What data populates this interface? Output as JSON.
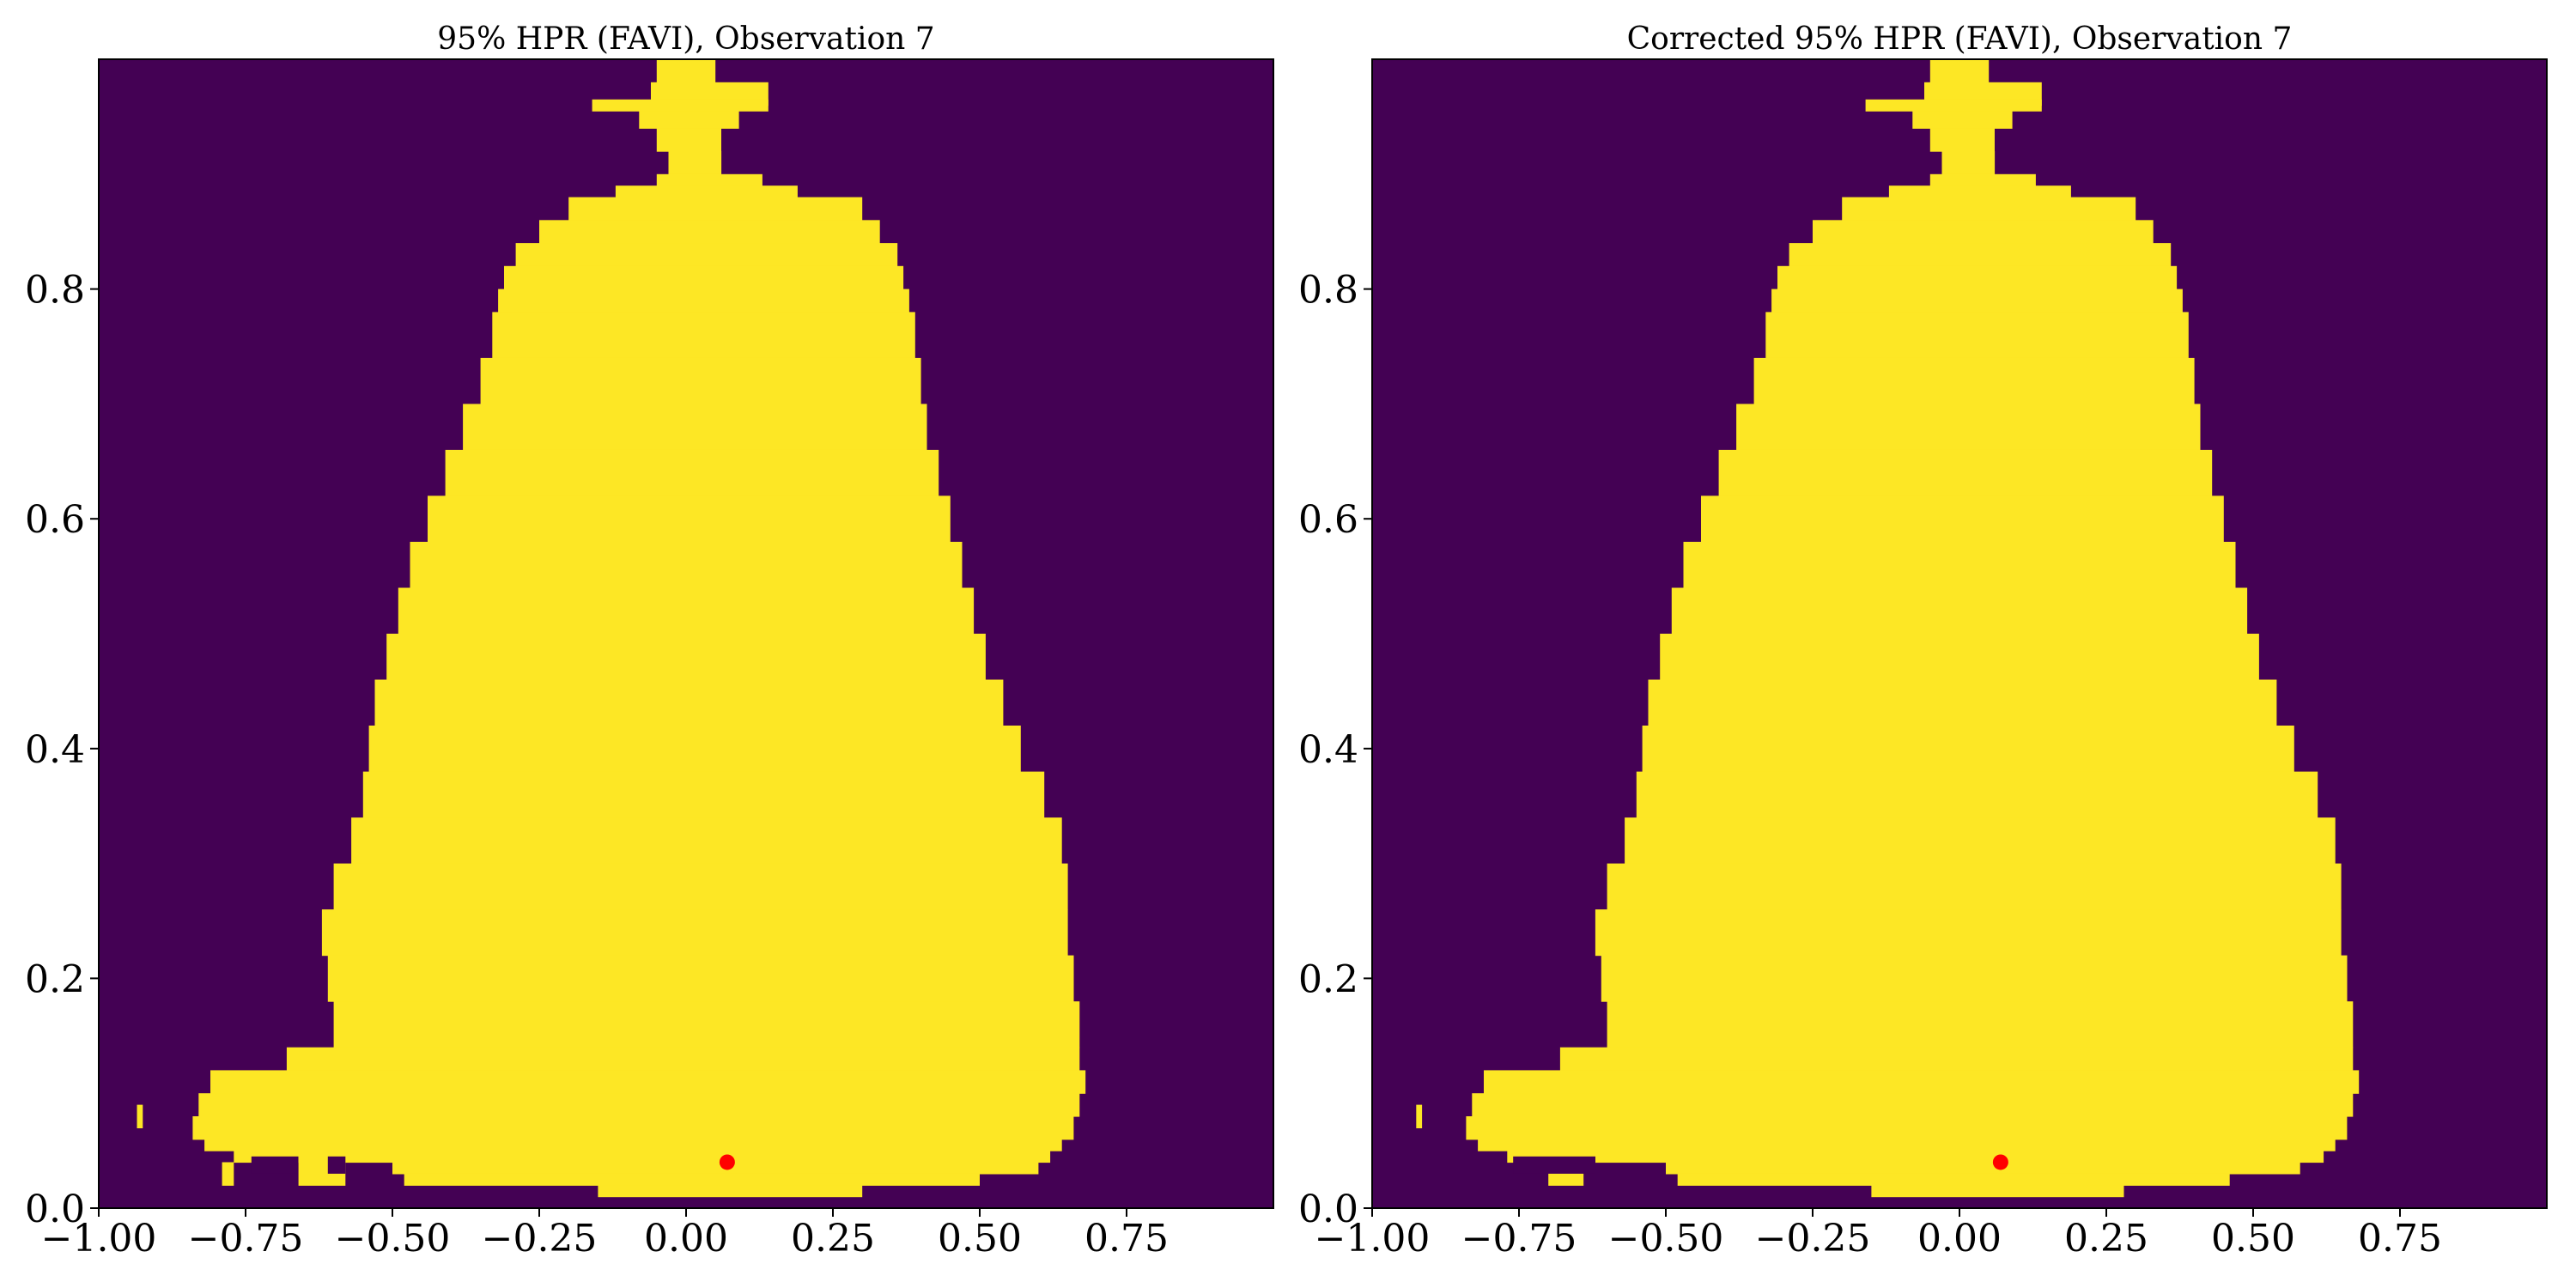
{
  "colors": {
    "background": "#440154",
    "region": "#fde725",
    "marker": "#ff0000",
    "axis": "#000000"
  },
  "chart_data": [
    {
      "type": "heatmap",
      "title": "95% HPR (FAVI), Observation 7",
      "xlim": [
        -1.0,
        1.0
      ],
      "ylim": [
        0.0,
        1.0
      ],
      "x_ticks": [
        -1.0,
        -0.75,
        -0.5,
        -0.25,
        0.0,
        0.25,
        0.5,
        0.75
      ],
      "x_tick_labels": [
        "−1.00",
        "−0.75",
        "−0.50",
        "−0.25",
        "0.00",
        "0.25",
        "0.50",
        "0.75"
      ],
      "y_ticks": [
        0.0,
        0.2,
        0.4,
        0.6,
        0.8
      ],
      "y_tick_labels": [
        "0.0",
        "0.2",
        "0.4",
        "0.6",
        "0.8"
      ],
      "grid": false,
      "region_rows": [
        {
          "y": [
            0.98,
            1.0
          ],
          "x": [
            -0.05,
            0.05
          ]
        },
        {
          "y": [
            0.96,
            0.98
          ],
          "x": [
            -0.06,
            0.14
          ]
        },
        {
          "y": [
            0.955,
            0.965
          ],
          "x": [
            -0.16,
            0.14
          ]
        },
        {
          "y": [
            0.94,
            0.955
          ],
          "x": [
            -0.08,
            0.09
          ]
        },
        {
          "y": [
            0.92,
            0.94
          ],
          "x": [
            -0.05,
            0.06
          ]
        },
        {
          "y": [
            0.9,
            0.92
          ],
          "x": [
            -0.03,
            0.06
          ]
        },
        {
          "y": [
            0.89,
            0.9
          ],
          "x": [
            -0.05,
            0.13
          ]
        },
        {
          "y": [
            0.88,
            0.89
          ],
          "x": [
            -0.12,
            0.19
          ]
        },
        {
          "y": [
            0.86,
            0.88
          ],
          "x": [
            -0.2,
            0.3
          ]
        },
        {
          "y": [
            0.84,
            0.86
          ],
          "x": [
            -0.25,
            0.33
          ]
        },
        {
          "y": [
            0.82,
            0.84
          ],
          "x": [
            -0.29,
            0.36
          ]
        },
        {
          "y": [
            0.8,
            0.82
          ],
          "x": [
            -0.31,
            0.37
          ]
        },
        {
          "y": [
            0.78,
            0.8
          ],
          "x": [
            -0.32,
            0.38
          ]
        },
        {
          "y": [
            0.74,
            0.78
          ],
          "x": [
            -0.33,
            0.39
          ]
        },
        {
          "y": [
            0.7,
            0.74
          ],
          "x": [
            -0.35,
            0.4
          ]
        },
        {
          "y": [
            0.66,
            0.7
          ],
          "x": [
            -0.38,
            0.41
          ]
        },
        {
          "y": [
            0.62,
            0.66
          ],
          "x": [
            -0.41,
            0.43
          ]
        },
        {
          "y": [
            0.58,
            0.62
          ],
          "x": [
            -0.44,
            0.45
          ]
        },
        {
          "y": [
            0.54,
            0.58
          ],
          "x": [
            -0.47,
            0.47
          ]
        },
        {
          "y": [
            0.5,
            0.54
          ],
          "x": [
            -0.49,
            0.49
          ]
        },
        {
          "y": [
            0.46,
            0.5
          ],
          "x": [
            -0.51,
            0.51
          ]
        },
        {
          "y": [
            0.42,
            0.46
          ],
          "x": [
            -0.53,
            0.54
          ]
        },
        {
          "y": [
            0.38,
            0.42
          ],
          "x": [
            -0.54,
            0.57
          ]
        },
        {
          "y": [
            0.34,
            0.38
          ],
          "x": [
            -0.55,
            0.61
          ]
        },
        {
          "y": [
            0.3,
            0.34
          ],
          "x": [
            -0.57,
            0.64
          ]
        },
        {
          "y": [
            0.26,
            0.3
          ],
          "x": [
            -0.6,
            0.65
          ]
        },
        {
          "y": [
            0.22,
            0.26
          ],
          "x": [
            -0.62,
            0.65
          ]
        },
        {
          "y": [
            0.18,
            0.22
          ],
          "x": [
            -0.61,
            0.66
          ]
        },
        {
          "y": [
            0.14,
            0.18
          ],
          "x": [
            -0.6,
            0.67
          ]
        },
        {
          "y": [
            0.12,
            0.14
          ],
          "x": [
            -0.68,
            0.67
          ]
        },
        {
          "y": [
            0.1,
            0.12
          ],
          "x": [
            -0.81,
            0.68
          ]
        },
        {
          "y": [
            0.08,
            0.1
          ],
          "x": [
            -0.83,
            0.67
          ]
        },
        {
          "y": [
            0.06,
            0.08
          ],
          "x": [
            -0.84,
            0.66
          ]
        },
        {
          "y": [
            0.05,
            0.06
          ],
          "x": [
            -0.82,
            0.64
          ]
        },
        {
          "y": [
            0.04,
            0.05
          ],
          "x": [
            -0.77,
            0.62
          ]
        },
        {
          "y": [
            0.03,
            0.04
          ],
          "x": [
            -0.5,
            0.6
          ]
        },
        {
          "y": [
            0.02,
            0.03
          ],
          "x": [
            -0.48,
            0.5
          ]
        },
        {
          "y": [
            0.01,
            0.02
          ],
          "x": [
            -0.15,
            0.3
          ]
        },
        {
          "y": [
            0.07,
            0.09
          ],
          "x": [
            -0.935,
            -0.925
          ]
        },
        {
          "y": [
            0.02,
            0.04
          ],
          "x": [
            -0.79,
            -0.77
          ]
        },
        {
          "y": [
            0.02,
            0.04
          ],
          "x": [
            -0.66,
            -0.58
          ]
        }
      ],
      "gaps": [
        {
          "y": [
            0.03,
            0.045
          ],
          "x": [
            -0.74,
            -0.66
          ]
        },
        {
          "y": [
            0.03,
            0.045
          ],
          "x": [
            -0.61,
            -0.58
          ]
        }
      ],
      "marker": {
        "x": 0.07,
        "y": 0.04
      }
    },
    {
      "type": "heatmap",
      "title": "Corrected 95% HPR (FAVI), Observation 7",
      "xlim": [
        -1.0,
        1.0
      ],
      "ylim": [
        0.0,
        1.0
      ],
      "x_ticks": [
        -1.0,
        -0.75,
        -0.5,
        -0.25,
        0.0,
        0.25,
        0.5,
        0.75
      ],
      "x_tick_labels": [
        "−1.00",
        "−0.75",
        "−0.50",
        "−0.25",
        "0.00",
        "0.25",
        "0.50",
        "0.75"
      ],
      "y_ticks": [
        0.0,
        0.2,
        0.4,
        0.6,
        0.8
      ],
      "y_tick_labels": [
        "0.0",
        "0.2",
        "0.4",
        "0.6",
        "0.8"
      ],
      "grid": false,
      "region_rows": [
        {
          "y": [
            0.98,
            1.0
          ],
          "x": [
            -0.05,
            0.05
          ]
        },
        {
          "y": [
            0.96,
            0.98
          ],
          "x": [
            -0.06,
            0.14
          ]
        },
        {
          "y": [
            0.955,
            0.965
          ],
          "x": [
            -0.16,
            0.14
          ]
        },
        {
          "y": [
            0.94,
            0.955
          ],
          "x": [
            -0.08,
            0.09
          ]
        },
        {
          "y": [
            0.92,
            0.94
          ],
          "x": [
            -0.05,
            0.06
          ]
        },
        {
          "y": [
            0.9,
            0.92
          ],
          "x": [
            -0.03,
            0.06
          ]
        },
        {
          "y": [
            0.89,
            0.9
          ],
          "x": [
            -0.05,
            0.13
          ]
        },
        {
          "y": [
            0.88,
            0.89
          ],
          "x": [
            -0.12,
            0.19
          ]
        },
        {
          "y": [
            0.86,
            0.88
          ],
          "x": [
            -0.2,
            0.3
          ]
        },
        {
          "y": [
            0.84,
            0.86
          ],
          "x": [
            -0.25,
            0.33
          ]
        },
        {
          "y": [
            0.82,
            0.84
          ],
          "x": [
            -0.29,
            0.36
          ]
        },
        {
          "y": [
            0.8,
            0.82
          ],
          "x": [
            -0.31,
            0.37
          ]
        },
        {
          "y": [
            0.78,
            0.8
          ],
          "x": [
            -0.32,
            0.38
          ]
        },
        {
          "y": [
            0.74,
            0.78
          ],
          "x": [
            -0.33,
            0.39
          ]
        },
        {
          "y": [
            0.7,
            0.74
          ],
          "x": [
            -0.35,
            0.4
          ]
        },
        {
          "y": [
            0.66,
            0.7
          ],
          "x": [
            -0.38,
            0.41
          ]
        },
        {
          "y": [
            0.62,
            0.66
          ],
          "x": [
            -0.41,
            0.43
          ]
        },
        {
          "y": [
            0.58,
            0.62
          ],
          "x": [
            -0.44,
            0.45
          ]
        },
        {
          "y": [
            0.54,
            0.58
          ],
          "x": [
            -0.47,
            0.47
          ]
        },
        {
          "y": [
            0.5,
            0.54
          ],
          "x": [
            -0.49,
            0.49
          ]
        },
        {
          "y": [
            0.46,
            0.5
          ],
          "x": [
            -0.51,
            0.51
          ]
        },
        {
          "y": [
            0.42,
            0.46
          ],
          "x": [
            -0.53,
            0.54
          ]
        },
        {
          "y": [
            0.38,
            0.42
          ],
          "x": [
            -0.54,
            0.57
          ]
        },
        {
          "y": [
            0.34,
            0.38
          ],
          "x": [
            -0.55,
            0.61
          ]
        },
        {
          "y": [
            0.3,
            0.34
          ],
          "x": [
            -0.57,
            0.64
          ]
        },
        {
          "y": [
            0.26,
            0.3
          ],
          "x": [
            -0.6,
            0.65
          ]
        },
        {
          "y": [
            0.22,
            0.26
          ],
          "x": [
            -0.62,
            0.65
          ]
        },
        {
          "y": [
            0.18,
            0.22
          ],
          "x": [
            -0.61,
            0.66
          ]
        },
        {
          "y": [
            0.14,
            0.18
          ],
          "x": [
            -0.6,
            0.67
          ]
        },
        {
          "y": [
            0.12,
            0.14
          ],
          "x": [
            -0.68,
            0.67
          ]
        },
        {
          "y": [
            0.1,
            0.12
          ],
          "x": [
            -0.81,
            0.68
          ]
        },
        {
          "y": [
            0.08,
            0.1
          ],
          "x": [
            -0.83,
            0.67
          ]
        },
        {
          "y": [
            0.06,
            0.08
          ],
          "x": [
            -0.84,
            0.66
          ]
        },
        {
          "y": [
            0.05,
            0.06
          ],
          "x": [
            -0.82,
            0.64
          ]
        },
        {
          "y": [
            0.04,
            0.05
          ],
          "x": [
            -0.77,
            0.62
          ]
        },
        {
          "y": [
            0.03,
            0.04
          ],
          "x": [
            -0.5,
            0.58
          ]
        },
        {
          "y": [
            0.02,
            0.03
          ],
          "x": [
            -0.48,
            0.46
          ]
        },
        {
          "y": [
            0.01,
            0.02
          ],
          "x": [
            -0.15,
            0.28
          ]
        },
        {
          "y": [
            0.07,
            0.09
          ],
          "x": [
            -0.925,
            -0.915
          ]
        },
        {
          "y": [
            0.02,
            0.04
          ],
          "x": [
            -0.7,
            -0.64
          ]
        }
      ],
      "gaps": [
        {
          "y": [
            0.03,
            0.045
          ],
          "x": [
            -0.76,
            -0.62
          ]
        }
      ],
      "marker": {
        "x": 0.07,
        "y": 0.04
      }
    }
  ]
}
